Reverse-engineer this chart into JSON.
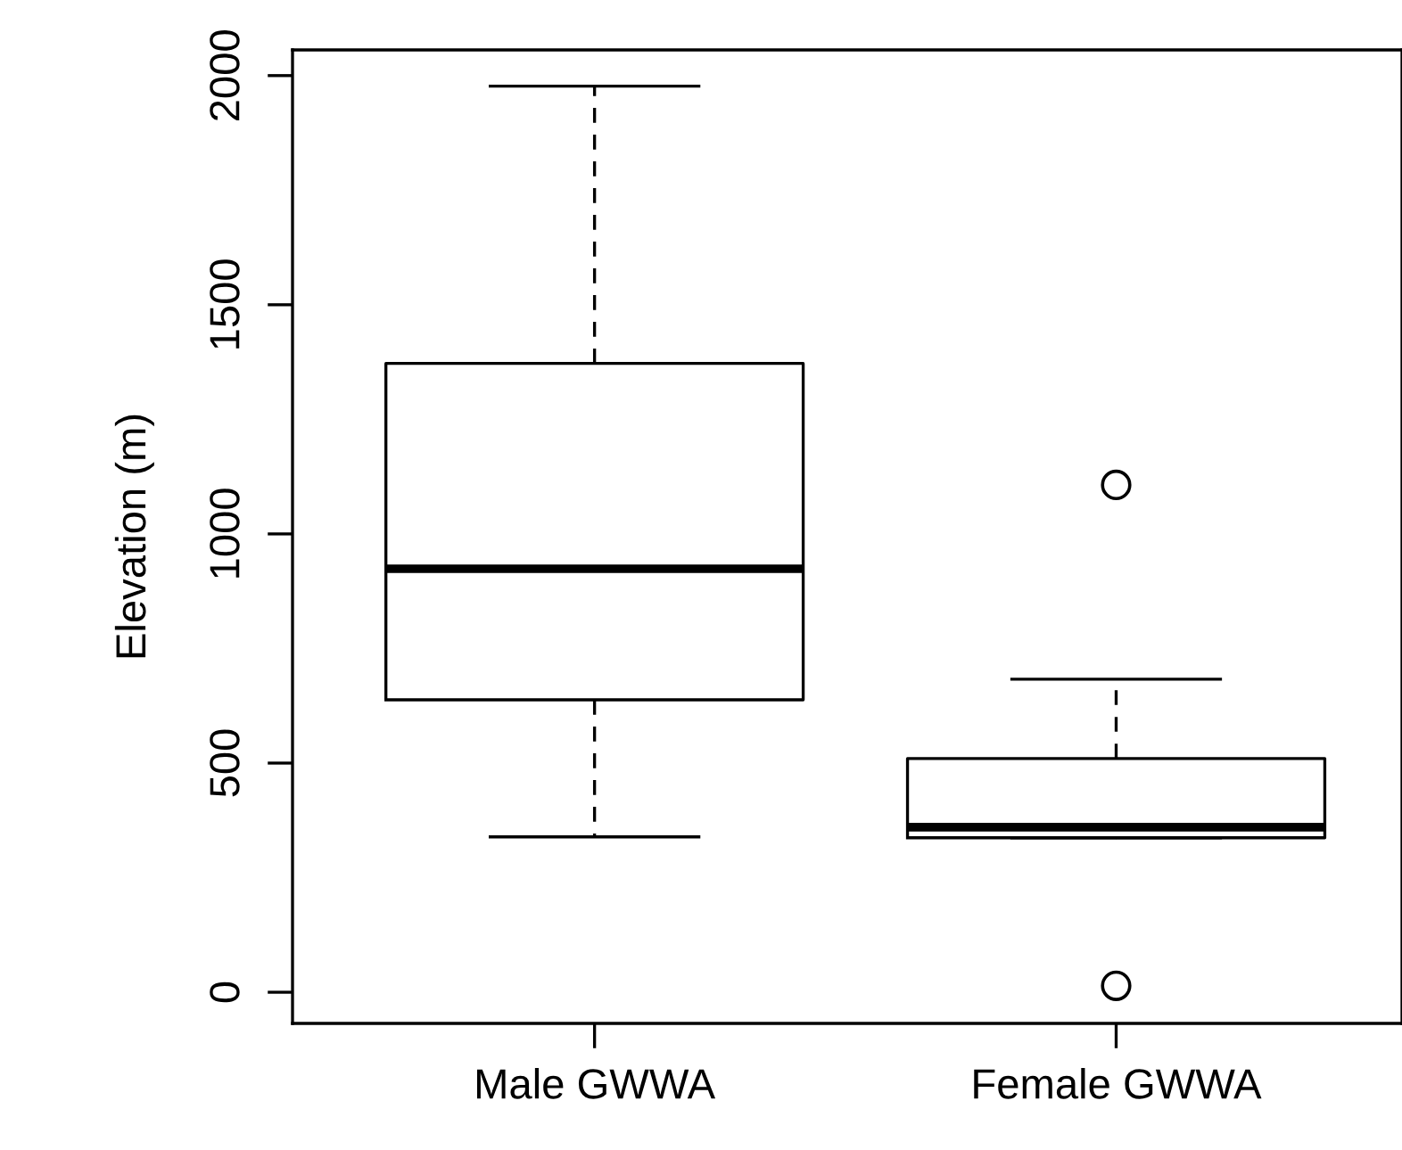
{
  "chart_data": {
    "type": "box",
    "ylabel": "Elevation (m)",
    "categories": [
      "Male GWWA",
      "Female GWWA"
    ],
    "boxes": [
      {
        "low": 339,
        "q1": 638,
        "median": 924,
        "q3": 1372,
        "high": 1977
      },
      {
        "low": 337,
        "q1": 337,
        "median": 360,
        "q3": 510,
        "high": 683,
        "outliers": [
          1107,
          14
        ]
      }
    ],
    "ylim": [
      -68,
      2056
    ],
    "yticks": [
      0,
      500,
      1000,
      1500,
      2000
    ],
    "grid": false
  }
}
